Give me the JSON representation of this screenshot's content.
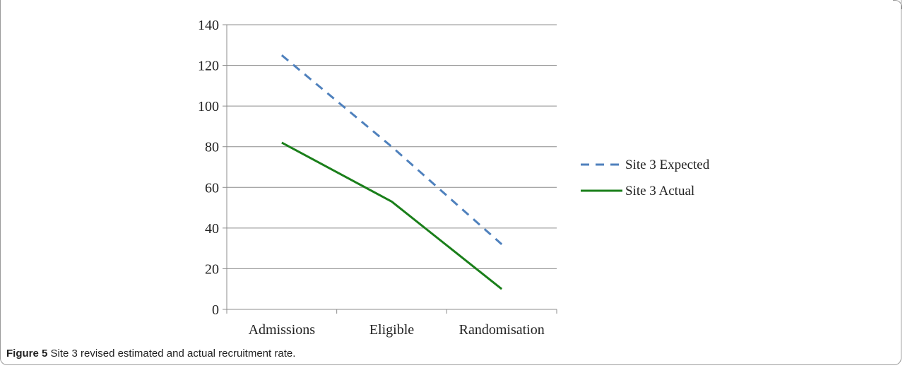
{
  "chart_data": {
    "type": "line",
    "categories": [
      "Admissions",
      "Eligible",
      "Randomisation"
    ],
    "series": [
      {
        "name": "Site 3 Expected",
        "values": [
          125,
          80,
          32
        ],
        "color": "#4f81bd",
        "style": "dashed"
      },
      {
        "name": "Site 3 Actual",
        "values": [
          82,
          53,
          10
        ],
        "color": "#1a7f1a",
        "style": "solid"
      }
    ],
    "yticks": [
      0,
      20,
      40,
      60,
      80,
      100,
      120,
      140
    ],
    "ylim": [
      0,
      140
    ],
    "grid": true,
    "legend": "right"
  },
  "caption": {
    "label": "Figure 5",
    "text": "Site 3 revised estimated and actual recruitment rate."
  }
}
